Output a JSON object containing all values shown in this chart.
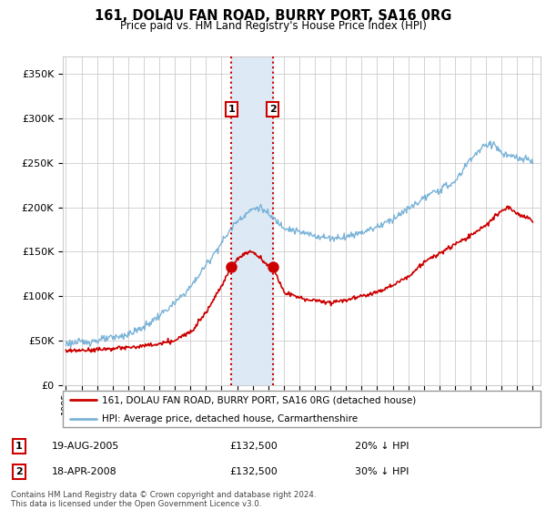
{
  "title": "161, DOLAU FAN ROAD, BURRY PORT, SA16 0RG",
  "subtitle": "Price paid vs. HM Land Registry's House Price Index (HPI)",
  "ylabel_ticks": [
    "£0",
    "£50K",
    "£100K",
    "£150K",
    "£200K",
    "£250K",
    "£300K",
    "£350K"
  ],
  "ytick_values": [
    0,
    50000,
    100000,
    150000,
    200000,
    250000,
    300000,
    350000
  ],
  "ylim": [
    0,
    370000
  ],
  "xlim_start": 1994.8,
  "xlim_end": 2025.5,
  "hpi_color": "#7ab3d8",
  "price_color": "#cc0000",
  "sale1_date": 2005.63,
  "sale1_price": 132500,
  "sale2_date": 2008.29,
  "sale2_price": 132500,
  "shade_color": "#ddeaf5",
  "dashed_color": "#cc0000",
  "legend_house_label": "161, DOLAU FAN ROAD, BURRY PORT, SA16 0RG (detached house)",
  "legend_hpi_label": "HPI: Average price, detached house, Carmarthenshire",
  "table_row1": [
    "1",
    "19-AUG-2005",
    "£132,500",
    "20% ↓ HPI"
  ],
  "table_row2": [
    "2",
    "18-APR-2008",
    "£132,500",
    "30% ↓ HPI"
  ],
  "footnote": "Contains HM Land Registry data © Crown copyright and database right 2024.\nThis data is licensed under the Open Government Licence v3.0.",
  "background_color": "#ffffff",
  "grid_color": "#cccccc",
  "hpi_base_x": [
    1995,
    1996,
    1997,
    1998,
    1999,
    2000,
    2001,
    2002,
    2003,
    2004,
    2005,
    2006,
    2007,
    2007.5,
    2008,
    2009,
    2010,
    2011,
    2012,
    2013,
    2014,
    2015,
    2016,
    2017,
    2018,
    2019,
    2020,
    2021,
    2022,
    2022.5,
    2023,
    2024,
    2025
  ],
  "hpi_base_y": [
    47000,
    48000,
    50000,
    53000,
    57000,
    65000,
    78000,
    92000,
    110000,
    135000,
    160000,
    185000,
    198000,
    200000,
    192000,
    178000,
    172000,
    168000,
    165000,
    167000,
    172000,
    178000,
    187000,
    198000,
    210000,
    220000,
    228000,
    255000,
    270000,
    272000,
    260000,
    255000,
    252000
  ],
  "price_base_x": [
    1995,
    1996,
    1997,
    1998,
    1999,
    2000,
    2001,
    2002,
    2003,
    2004,
    2005,
    2005.63,
    2006,
    2006.5,
    2007,
    2008,
    2008.29,
    2009,
    2010,
    2011,
    2012,
    2013,
    2014,
    2015,
    2016,
    2017,
    2018,
    2019,
    2020,
    2021,
    2022,
    2023,
    2023.5,
    2024,
    2025
  ],
  "price_base_y": [
    38000,
    39000,
    40000,
    41000,
    42000,
    44000,
    46000,
    50000,
    60000,
    82000,
    112000,
    132500,
    142000,
    148000,
    150000,
    135000,
    132500,
    105000,
    98000,
    95000,
    93000,
    96000,
    100000,
    105000,
    112000,
    122000,
    138000,
    148000,
    158000,
    168000,
    180000,
    196000,
    200000,
    193000,
    185000
  ]
}
